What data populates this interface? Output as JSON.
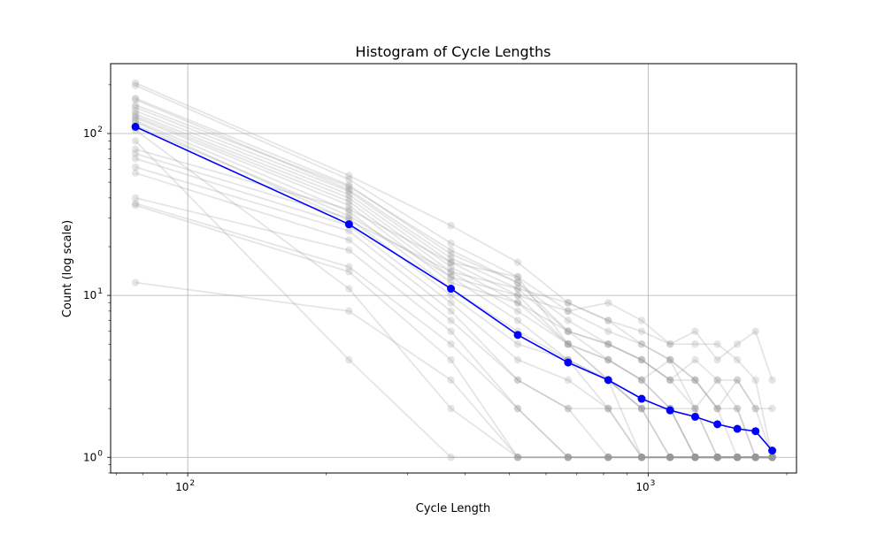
{
  "chart_data": {
    "type": "line",
    "title": "Histogram of Cycle Lengths",
    "xlabel": "Cycle Length",
    "ylabel": "Count (log scale)",
    "xscale": "log",
    "yscale": "log",
    "xlim": [
      68,
      2100
    ],
    "ylim": [
      0.8,
      270
    ],
    "grid": true,
    "x_major_ticks": [
      {
        "value": 100,
        "base": "10",
        "exp": "2"
      },
      {
        "value": 1000,
        "base": "10",
        "exp": "3"
      }
    ],
    "y_major_ticks": [
      {
        "value": 1,
        "base": "10",
        "exp": "0"
      },
      {
        "value": 10,
        "base": "10",
        "exp": "1"
      },
      {
        "value": 100,
        "base": "10",
        "exp": "2"
      }
    ],
    "x": [
      77,
      224,
      373,
      521,
      670,
      819,
      968,
      1116,
      1265,
      1414,
      1562,
      1711,
      1860
    ],
    "mean_series": {
      "color": "#0000ff",
      "values": [
        110,
        27.5,
        11,
        5.7,
        3.85,
        3.0,
        2.3,
        1.95,
        1.78,
        1.6,
        1.5,
        1.45,
        1.1
      ]
    },
    "background_series": {
      "color": "#999999",
      "series": [
        {
          "values": [
            205,
            55,
            27,
            16,
            9,
            7,
            6,
            5,
            5,
            5,
            4,
            3,
            1
          ]
        },
        {
          "values": [
            198,
            52,
            21,
            13,
            8,
            6,
            5,
            4,
            3,
            2,
            1,
            1,
            1
          ]
        },
        {
          "values": [
            165,
            48,
            18,
            12,
            7,
            5,
            4,
            3,
            3,
            2,
            2,
            1,
            1
          ]
        },
        {
          "values": [
            162,
            45,
            17,
            11,
            6,
            4,
            3,
            2,
            2,
            1,
            1,
            1,
            1
          ]
        },
        {
          "values": [
            145,
            44,
            16,
            10,
            5,
            4,
            3,
            2,
            1,
            1,
            1,
            1,
            1
          ]
        },
        {
          "values": [
            138,
            42,
            15,
            9,
            6,
            5,
            4,
            3,
            2,
            1,
            1,
            1,
            1
          ]
        },
        {
          "values": [
            132,
            40,
            14,
            8,
            5,
            3,
            2,
            2,
            1,
            1,
            1,
            1,
            1
          ]
        },
        {
          "values": [
            128,
            38,
            13,
            7,
            4,
            3,
            2,
            1,
            1,
            1,
            1,
            1,
            1
          ]
        },
        {
          "values": [
            125,
            36,
            12,
            9,
            5,
            3,
            2,
            2,
            1,
            1,
            1,
            1,
            1
          ]
        },
        {
          "values": [
            120,
            33,
            11,
            6,
            4,
            2,
            2,
            1,
            1,
            1,
            1,
            1,
            1
          ]
        },
        {
          "values": [
            75,
            30,
            10,
            5,
            4,
            3,
            1,
            1,
            1,
            1,
            1,
            1,
            1
          ]
        },
        {
          "values": [
            70,
            27,
            9,
            4,
            3,
            2,
            1,
            1,
            1,
            1,
            1,
            1,
            1
          ]
        },
        {
          "values": [
            62,
            25,
            8,
            3,
            2,
            2,
            1,
            1,
            1,
            1,
            1,
            1,
            1
          ]
        },
        {
          "values": [
            57,
            22,
            7,
            3,
            2,
            1,
            1,
            1,
            1,
            1,
            1,
            1,
            1
          ]
        },
        {
          "values": [
            40,
            19,
            6,
            2,
            1,
            1,
            1,
            1,
            1,
            1,
            1,
            1,
            1
          ]
        },
        {
          "values": [
            37,
            15,
            5,
            2,
            1,
            1,
            1,
            1,
            1,
            1,
            1,
            1,
            1
          ]
        },
        {
          "values": [
            36,
            14,
            4,
            1,
            1,
            1,
            1,
            1,
            1,
            1,
            1,
            1,
            1
          ]
        },
        {
          "values": [
            12,
            8,
            3,
            1,
            1,
            1,
            1,
            1,
            1,
            1,
            1,
            1,
            1
          ]
        },
        {
          "values": [
            105,
            11,
            2,
            1,
            1,
            1,
            1,
            1,
            1,
            1,
            1,
            1,
            1
          ]
        },
        {
          "values": [
            90,
            4,
            1,
            1,
            1,
            1,
            1,
            1,
            1,
            1,
            1,
            1,
            1
          ]
        },
        {
          "values": [
            118,
            29,
            14,
            11,
            9,
            7,
            5,
            4,
            3,
            2,
            3,
            2,
            2
          ]
        },
        {
          "values": [
            112,
            31,
            13,
            10,
            8,
            9,
            7,
            5,
            6,
            4,
            5,
            6,
            3
          ]
        },
        {
          "values": [
            150,
            47,
            19,
            12,
            6,
            5,
            4,
            3,
            4,
            3,
            3,
            2,
            1
          ]
        },
        {
          "values": [
            80,
            34,
            16,
            13,
            5,
            4,
            3,
            4,
            2,
            3,
            2,
            1,
            1
          ]
        }
      ]
    }
  }
}
